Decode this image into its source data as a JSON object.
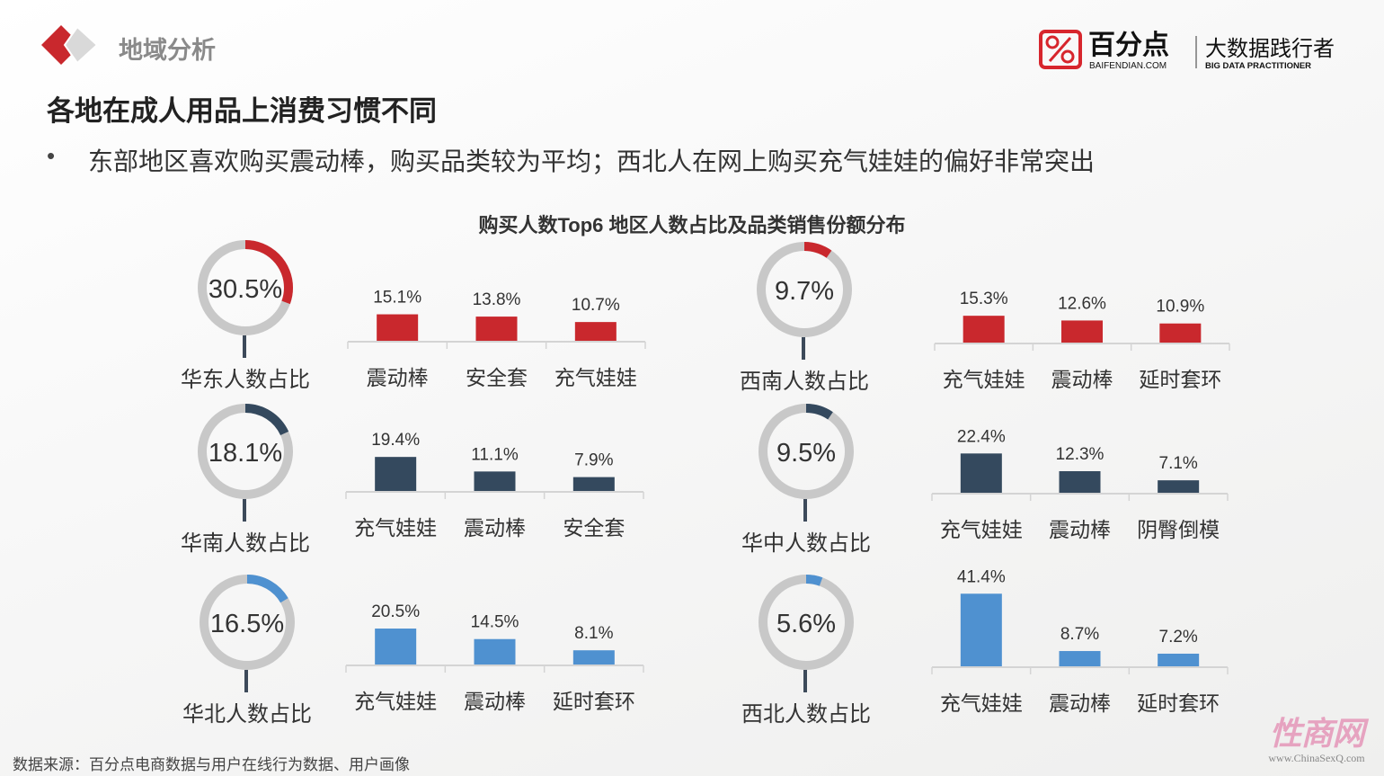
{
  "header": {
    "section_title": "地域分析",
    "brand_name": "百分点",
    "brand_domain": "BAIFENDIAN.COM",
    "brand_slogan": "大数据践行者",
    "brand_slogan_en": "BIG DATA PRACTITIONER",
    "brand_color": "#d7262d"
  },
  "headline": "各地在成人用品上消费习惯不同",
  "bullet": "东部地区喜欢购买震动棒，购买品类较为平均；西北人在网上购买充气娃娃的偏好非常突出",
  "footer": {
    "source": "数据来源：百分点电商数据与用户在线行为数据、用户画像"
  },
  "watermark": {
    "text": "性商网",
    "url": "www.ChinaSexQ.com"
  },
  "chart_data": {
    "type": "bar",
    "title": "购买人数Top6 地区人数占比及品类销售份额分布",
    "ring_color": "#c8c8c8",
    "panels": [
      {
        "region_label": "华东人数占比",
        "share": 30.5,
        "share_label": "30.5%",
        "color": "#c9282d",
        "categories": [
          "震动棒",
          "安全套",
          "充气娃娃"
        ],
        "values": [
          15.1,
          13.8,
          10.7
        ],
        "value_labels": [
          "15.1%",
          "13.8%",
          "10.7%"
        ]
      },
      {
        "region_label": "西南人数占比",
        "share": 9.7,
        "share_label": "9.7%",
        "color": "#c9282d",
        "categories": [
          "充气娃娃",
          "震动棒",
          "延时套环"
        ],
        "values": [
          15.3,
          12.6,
          10.9
        ],
        "value_labels": [
          "15.3%",
          "12.6%",
          "10.9%"
        ]
      },
      {
        "region_label": "华南人数占比",
        "share": 18.1,
        "share_label": "18.1%",
        "color": "#34495e",
        "categories": [
          "充气娃娃",
          "震动棒",
          "安全套"
        ],
        "values": [
          19.4,
          11.1,
          7.9
        ],
        "value_labels": [
          "19.4%",
          "11.1%",
          "7.9%"
        ]
      },
      {
        "region_label": "华中人数占比",
        "share": 9.5,
        "share_label": "9.5%",
        "color": "#34495e",
        "categories": [
          "充气娃娃",
          "震动棒",
          "阴臀倒模"
        ],
        "values": [
          22.4,
          12.3,
          7.1
        ],
        "value_labels": [
          "22.4%",
          "12.3%",
          "7.1%"
        ]
      },
      {
        "region_label": "华北人数占比",
        "share": 16.5,
        "share_label": "16.5%",
        "color": "#4f91d0",
        "categories": [
          "充气娃娃",
          "震动棒",
          "延时套环"
        ],
        "values": [
          20.5,
          14.5,
          8.1
        ],
        "value_labels": [
          "20.5%",
          "14.5%",
          "8.1%"
        ]
      },
      {
        "region_label": "西北人数占比",
        "share": 5.6,
        "share_label": "5.6%",
        "color": "#4f91d0",
        "categories": [
          "充气娃娃",
          "震动棒",
          "延时套环"
        ],
        "values": [
          41.4,
          8.7,
          7.2
        ],
        "value_labels": [
          "41.4%",
          "8.7%",
          "7.2%"
        ]
      }
    ]
  }
}
